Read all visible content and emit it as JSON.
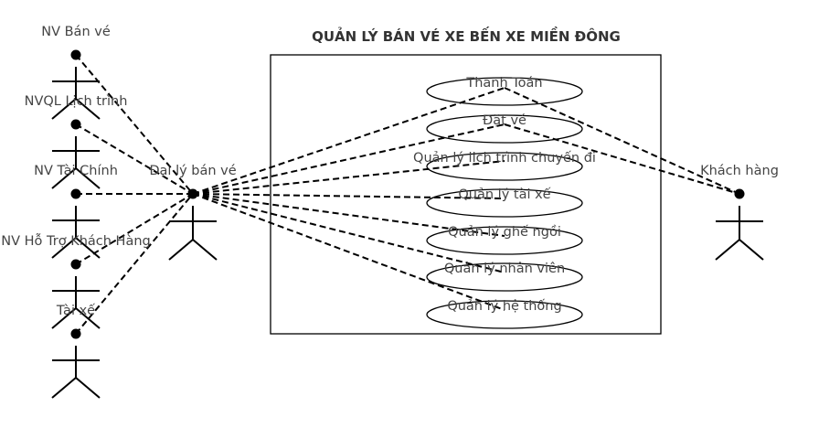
{
  "title": "QUẢN LÝ BÁN VÉ XE BẾN XE MIỀN ĐÔNG",
  "actors": {
    "nv_ban_ve": "NV Bán vé",
    "nvql_lich_trinh": "NVQL Lịch trình",
    "nv_tai_chinh": "NV Tài Chính",
    "nv_ho_tro": "NV Hỗ Trợ Khách Hàng",
    "tai_xe": "Tài xế",
    "dai_ly": "Đại lý bán vé",
    "khach_hang": "Khách hàng"
  },
  "use_cases": {
    "thanh_toan": "Thanh Toán",
    "dat_ve": "Đặt vé",
    "ql_lich_trinh": "Quản lý lịch trình chuyến đi",
    "ql_tai_xe": "Quản lý tài xế",
    "ql_ghe_ngoi": "Quản lý ghế ngồi",
    "ql_nhan_vien": "Quản lý nhân viên",
    "ql_he_thong": "Quản lý hệ thống"
  },
  "colors": {
    "line": "#000000",
    "text": "#444444",
    "title": "#333333",
    "background": "#ffffff"
  }
}
